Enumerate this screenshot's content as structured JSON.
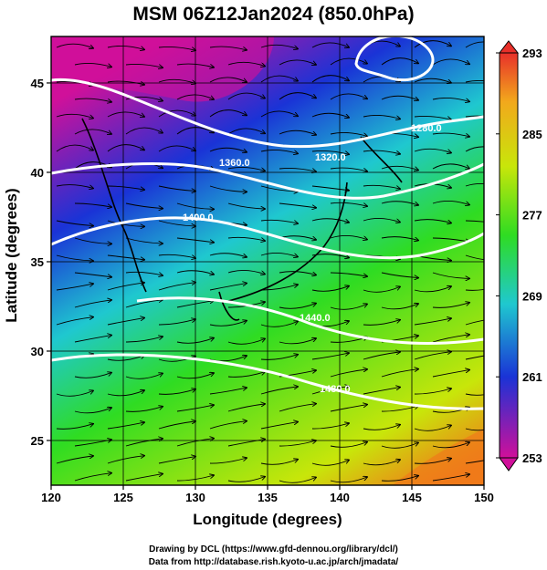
{
  "title": "MSM 06Z12Jan2024 (850.0hPa)",
  "xlabel": "Longitude (degrees)",
  "ylabel": "Latitude  (degrees)",
  "x_ticks": [
    "120",
    "125",
    "130",
    "135",
    "140",
    "145",
    "150"
  ],
  "y_ticks": [
    "25",
    "30",
    "35",
    "40",
    "45"
  ],
  "colorbar_ticks": [
    "293",
    "285",
    "277",
    "269",
    "261",
    "253"
  ],
  "contour_labels": [
    "1280.0",
    "1320.0",
    "1360.0",
    "1400.0",
    "1440.0",
    "1480.0"
  ],
  "credits": {
    "line1": "Drawing by DCL (https://www.gfd-dennou.org/library/dcl/)",
    "line2": "Data from http://database.rish.kyoto-u.ac.jp/arch/jmadata/"
  },
  "colors": {
    "cold": "#d0109a",
    "blue": "#1a33d6",
    "cyan": "#1fc8cf",
    "green": "#2fdc22",
    "yellow": "#c8e60a",
    "warm": "#f07a1a",
    "contour": "#ffffff"
  },
  "chart_data": {
    "type": "heatmap",
    "title": "MSM 06Z12Jan2024 (850.0hPa)",
    "xlabel": "Longitude (degrees)",
    "ylabel": "Latitude  (degrees)",
    "xlim": [
      120,
      150
    ],
    "ylim": [
      22.5,
      47.6
    ],
    "field": "temperature (colour shading), geopotential height (white contours), wind (streamlines)",
    "colorbar": {
      "min": 253,
      "max": 293,
      "ticks": [
        253,
        261,
        269,
        277,
        285,
        293
      ]
    },
    "contour_levels": [
      1280.0,
      1320.0,
      1360.0,
      1400.0,
      1440.0,
      1480.0
    ],
    "grid": true
  }
}
